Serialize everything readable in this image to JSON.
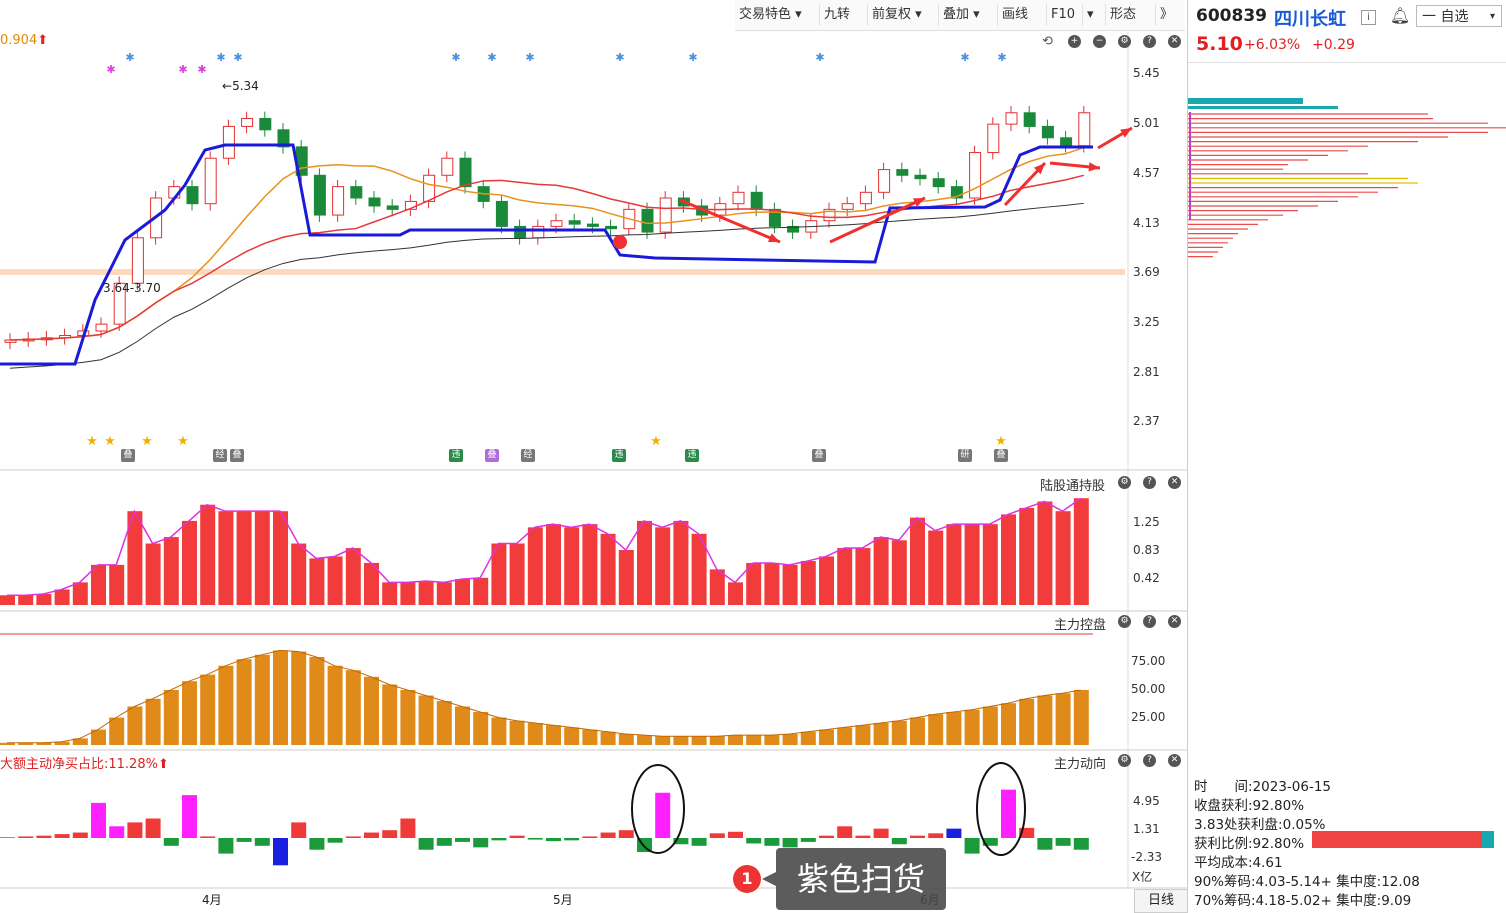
{
  "toolbar": {
    "items": [
      "交易特色 ▾",
      "九转",
      "前复权 ▾",
      "叠加 ▾",
      "画线",
      "F10",
      "▾",
      "形态",
      "》"
    ]
  },
  "stock": {
    "code": "600839",
    "name": "四川长虹",
    "info_icon": "i",
    "price": "5.10",
    "change_pct": "+6.03%",
    "change": "+0.29",
    "watchlist_button": "一 自选",
    "up_color": "#e02020"
  },
  "main_chart": {
    "top_left_value": "0.904",
    "y_ticks": [
      "5.45",
      "5.01",
      "4.57",
      "4.13",
      "3.69",
      "3.25",
      "2.81",
      "2.37"
    ],
    "annotations": {
      "high_label": "5.34",
      "range_label": "3.64-3.70"
    },
    "badges": [
      "叠",
      "经",
      "叠",
      "违",
      "叠",
      "经",
      "违",
      "违",
      "叠",
      "研",
      "叠"
    ]
  },
  "panels": {
    "lgt": {
      "title": "陆股通持股",
      "y_ticks": [
        "1.25",
        "0.83",
        "0.42"
      ]
    },
    "zlkp": {
      "title": "主力控盘",
      "y_ticks": [
        "75.00",
        "50.00",
        "25.00"
      ]
    },
    "zldx": {
      "title": "主力动向",
      "indicator": "大额主动净买占比:11.28%",
      "y_ticks": [
        "4.95",
        "1.31",
        "-2.33"
      ],
      "unit": "X亿"
    }
  },
  "x_axis": {
    "labels": [
      "4月",
      "5月",
      "6月"
    ],
    "period": "日线"
  },
  "callout": {
    "number": "1",
    "text": "紫色扫货"
  },
  "chip_info": {
    "time": "时　　间:2023-06-15",
    "profit": "收盘获利:92.80%",
    "at_price": "3.83处获利盘:0.05%",
    "profit_ratio": "获利比例:92.80%",
    "avg_cost": "平均成本:4.61",
    "chip90": "90%筹码:4.03-5.14+ 集中度:12.08",
    "chip70": "70%筹码:4.18-5.02+ 集中度:9.09"
  }
}
